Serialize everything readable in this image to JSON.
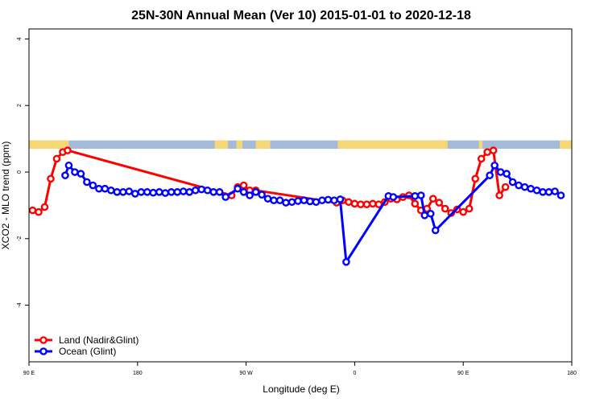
{
  "chart_data": {
    "type": "line",
    "title": "25N-30N Annual Mean (Ver 10)   2015-01-01 to 2020-12-18",
    "xlabel": "Longitude (deg E)",
    "ylabel": "XCO2 - MLO trend (ppm)",
    "xlim": [
      90,
      540
    ],
    "ylim": [
      -5.7,
      4.3
    ],
    "x_ticks": [
      {
        "value": 90,
        "label": "90 E"
      },
      {
        "value": 180,
        "label": "180"
      },
      {
        "value": 270,
        "label": "90 W"
      },
      {
        "value": 360,
        "label": "0"
      },
      {
        "value": 450,
        "label": "90 E"
      },
      {
        "value": 540,
        "label": "180"
      }
    ],
    "y_ticks": [
      {
        "value": 4,
        "label": "4"
      },
      {
        "value": 2,
        "label": "2"
      },
      {
        "value": 0,
        "label": "0"
      },
      {
        "value": -2,
        "label": "-2"
      },
      {
        "value": -4,
        "label": "-4"
      }
    ],
    "legend_position": "bottom-left",
    "surface_strip": {
      "y_range": [
        0.7,
        0.95
      ],
      "ocean_color": "#a3bbd8",
      "land_color": "#f6d776",
      "land_spans": [
        [
          90,
          123
        ],
        [
          244,
          255
        ],
        [
          262,
          267
        ],
        [
          278,
          290
        ],
        [
          346,
          437
        ],
        [
          463,
          466
        ],
        [
          530,
          542
        ]
      ]
    },
    "series": [
      {
        "name": "Land (Nadir&Glint)",
        "color": "#ff0000",
        "x": [
          93,
          98,
          103,
          108,
          113,
          118,
          122,
          258,
          263,
          268,
          273,
          278,
          345,
          350,
          355,
          360,
          365,
          370,
          375,
          380,
          385,
          390,
          395,
          400,
          405,
          410,
          415,
          420,
          425,
          430,
          435,
          440,
          445,
          450,
          455,
          460,
          465,
          470,
          475,
          480,
          485
        ],
        "y": [
          -1.15,
          -1.2,
          -1.05,
          -0.2,
          0.4,
          0.6,
          0.65,
          -0.7,
          -0.45,
          -0.4,
          -0.55,
          -0.55,
          -0.92,
          -0.85,
          -0.9,
          -0.95,
          -0.97,
          -0.97,
          -0.95,
          -0.97,
          -0.9,
          -0.8,
          -0.82,
          -0.75,
          -0.7,
          -0.95,
          -1.15,
          -1.1,
          -0.8,
          -0.92,
          -1.1,
          -1.23,
          -1.12,
          -1.2,
          -1.1,
          -0.2,
          0.4,
          0.6,
          0.65,
          -0.7,
          -0.45
        ]
      },
      {
        "name": "Ocean (Glint)",
        "color": "#0000ff",
        "x": [
          120,
          123,
          128,
          133,
          138,
          143,
          148,
          153,
          158,
          163,
          168,
          173,
          178,
          183,
          188,
          193,
          198,
          203,
          208,
          213,
          218,
          223,
          228,
          233,
          238,
          243,
          248,
          253,
          263,
          268,
          273,
          278,
          283,
          288,
          293,
          298,
          303,
          308,
          313,
          318,
          323,
          328,
          333,
          338,
          343,
          348,
          353,
          388,
          392,
          410,
          415,
          418,
          423,
          427,
          472,
          476,
          481,
          486,
          491,
          496,
          501,
          506,
          511,
          516,
          521,
          526,
          531
        ],
        "y": [
          -0.1,
          0.2,
          0.0,
          -0.05,
          -0.3,
          -0.4,
          -0.5,
          -0.5,
          -0.55,
          -0.6,
          -0.6,
          -0.58,
          -0.65,
          -0.6,
          -0.6,
          -0.62,
          -0.6,
          -0.63,
          -0.6,
          -0.6,
          -0.58,
          -0.6,
          -0.55,
          -0.52,
          -0.55,
          -0.6,
          -0.6,
          -0.75,
          -0.5,
          -0.6,
          -0.7,
          -0.6,
          -0.68,
          -0.8,
          -0.85,
          -0.85,
          -0.92,
          -0.9,
          -0.87,
          -0.85,
          -0.88,
          -0.9,
          -0.85,
          -0.83,
          -0.85,
          -0.82,
          -2.7,
          -0.72,
          -0.75,
          -0.72,
          -0.7,
          -1.3,
          -1.25,
          -1.75,
          -0.1,
          0.2,
          0.0,
          -0.05,
          -0.3,
          -0.4,
          -0.45,
          -0.5,
          -0.55,
          -0.6,
          -0.6,
          -0.58,
          -0.7
        ]
      }
    ]
  }
}
